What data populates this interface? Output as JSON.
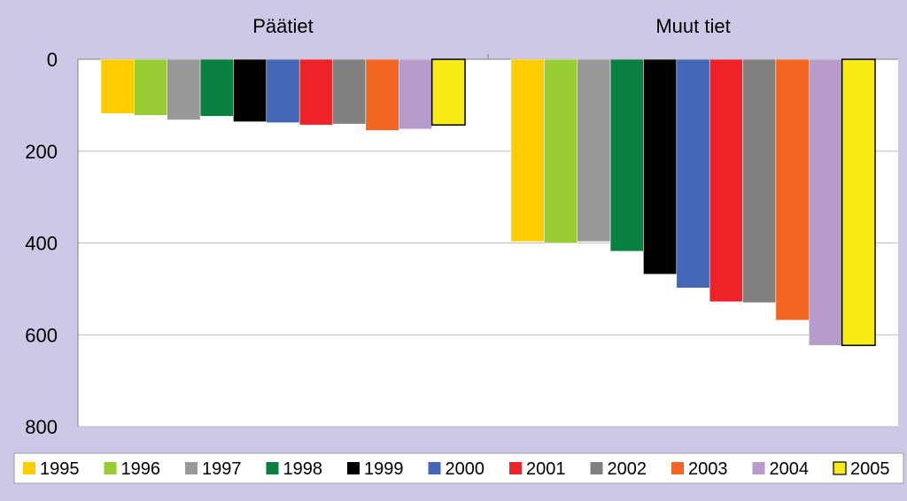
{
  "chart_data": {
    "type": "bar",
    "orientation": "downward",
    "categories": [
      "Päätiet",
      "Muut tiet"
    ],
    "series": [
      {
        "name": "1995",
        "color": "#FFCC00",
        "values": [
          118,
          397
        ]
      },
      {
        "name": "1996",
        "color": "#99CC33",
        "values": [
          122,
          400
        ]
      },
      {
        "name": "1997",
        "color": "#999999",
        "values": [
          132,
          397
        ]
      },
      {
        "name": "1998",
        "color": "#0A8040",
        "values": [
          124,
          418
        ]
      },
      {
        "name": "1999",
        "color": "#000000",
        "values": [
          136,
          468
        ]
      },
      {
        "name": "2000",
        "color": "#4466B5",
        "values": [
          138,
          498
        ]
      },
      {
        "name": "2001",
        "color": "#EE2229",
        "values": [
          143,
          528
        ]
      },
      {
        "name": "2002",
        "color": "#808080",
        "values": [
          141,
          530
        ]
      },
      {
        "name": "2003",
        "color": "#F26522",
        "values": [
          155,
          568
        ]
      },
      {
        "name": "2004",
        "color": "#B69BCB",
        "values": [
          152,
          623
        ]
      },
      {
        "name": "2005",
        "color": "#F7EC13",
        "values": [
          143,
          623
        ]
      }
    ],
    "ylim": [
      0,
      800
    ],
    "yticks": [
      "0",
      "200",
      "400",
      "600",
      "800"
    ],
    "grid": true,
    "legend_position": "bottom"
  }
}
